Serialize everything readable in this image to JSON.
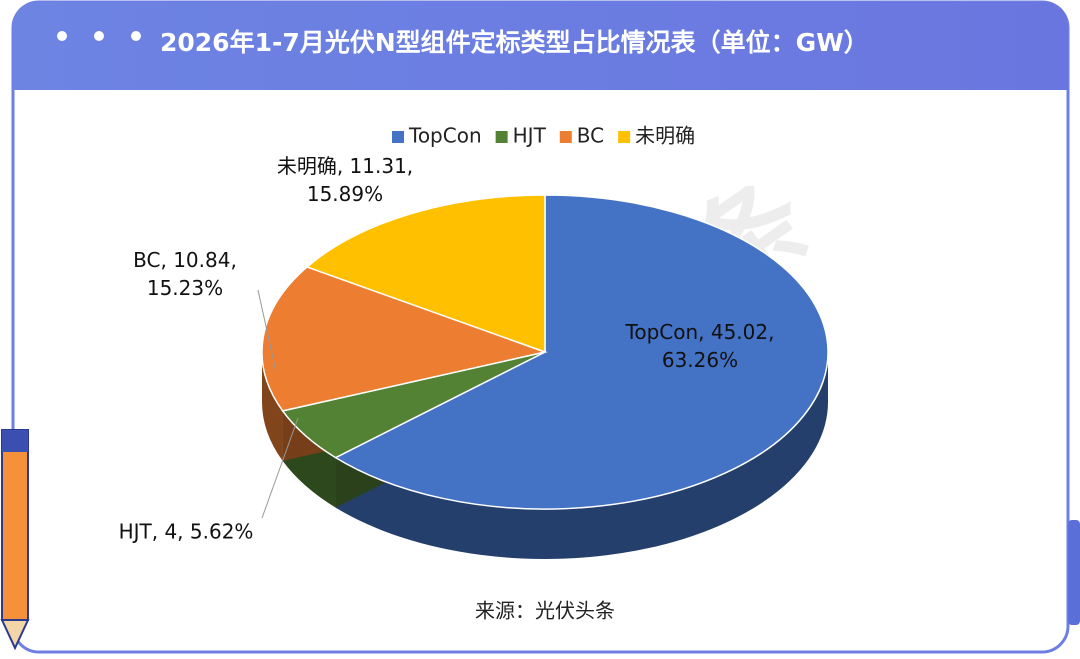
{
  "chart_data": {
    "type": "pie3d",
    "title": "2026年1-7月光伏N型组件定标类型占比情况表（单位：GW）",
    "categories": [
      "TopCon",
      "HJT",
      "BC",
      "未明确"
    ],
    "values": [
      45.02,
      4,
      10.84,
      11.31
    ],
    "value_labels": [
      "TopCon, 45.02, 63.26%",
      "HJT, 4, 5.62%",
      "BC, 10.84, 15.23%",
      "未明确, 11.31, 15.89%"
    ],
    "colors": [
      "#4472c4",
      "#548235",
      "#ed7d31",
      "#ffc000"
    ],
    "legend": "top",
    "source": "来源：光伏头条",
    "watermark": "光伏头条"
  }
}
